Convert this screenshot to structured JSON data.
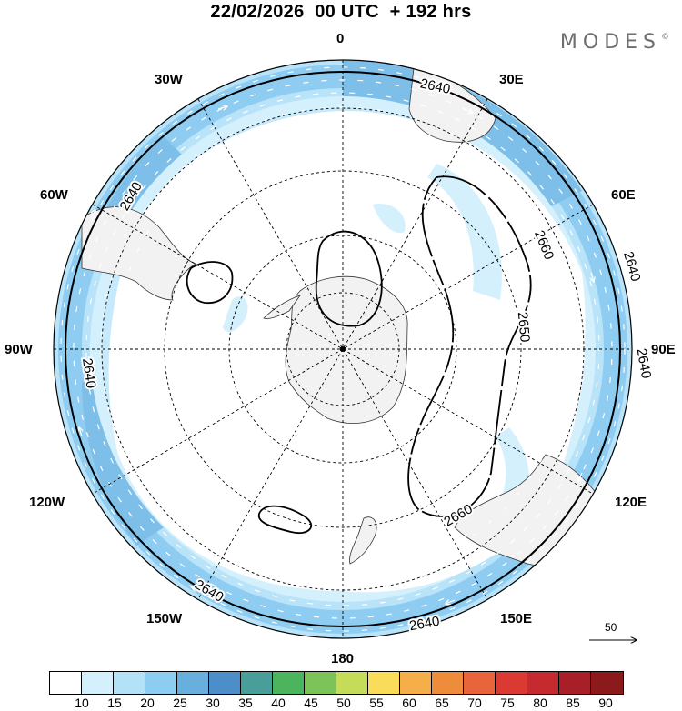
{
  "title": "22/02/2026  00 UTC  + 192 hrs",
  "brand": "MODES",
  "brand_mark": "©",
  "longitude_labels": {
    "n0": "0",
    "e30": "30E",
    "e60": "60E",
    "e90": "90E",
    "e120": "120E",
    "e150": "150E",
    "s180": "180",
    "w150": "150W",
    "w120": "120W",
    "w90": "90W",
    "w60": "60W",
    "w30": "30W"
  },
  "contour_labels": {
    "c2640_top": "2640",
    "c2640_left": "2640",
    "c2640_right_a": "2640",
    "c2640_right_b": "2640",
    "c2640_bottom_a": "2640",
    "c2640_bottom_b": "2640",
    "c2660_a": "2660",
    "c2660_b": "2660",
    "c2650": "2650"
  },
  "reference_vector": {
    "value": "50"
  },
  "colorbar": {
    "colors": [
      "#ffffff",
      "#d5f0fd",
      "#b2e1f8",
      "#8ecdf1",
      "#6aaede",
      "#4d8ec8",
      "#4a9e9a",
      "#4cb45d",
      "#7cc45a",
      "#c4dc5a",
      "#f8dc5a",
      "#f5ae4a",
      "#ef8c3c",
      "#e8643a",
      "#da3a32",
      "#c42a2e",
      "#a81f28",
      "#8c1a1a"
    ],
    "tick_labels": [
      "10",
      "15",
      "20",
      "25",
      "30",
      "35",
      "40",
      "45",
      "50",
      "55",
      "60",
      "65",
      "70",
      "75",
      "80",
      "85",
      "90"
    ]
  }
}
